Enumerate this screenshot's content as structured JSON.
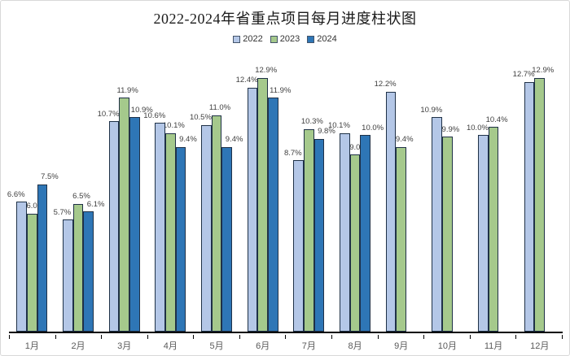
{
  "window": {
    "background": "#ffffff",
    "border_color": "#d8d8d8"
  },
  "chart_data": {
    "type": "bar",
    "title": "2022-2024年省重点项目每月进度柱状图",
    "categories": [
      "1月",
      "2月",
      "3月",
      "4月",
      "5月",
      "6月",
      "7月",
      "8月",
      "9月",
      "10月",
      "11月",
      "12月"
    ],
    "series": [
      {
        "name": "2022",
        "color": "#B4C7E7",
        "values": [
          6.6,
          5.7,
          10.7,
          10.6,
          10.5,
          12.4,
          8.7,
          10.1,
          12.2,
          10.9,
          10.0,
          12.7
        ]
      },
      {
        "name": "2023",
        "color": "#A5C98C",
        "values": [
          6.0,
          6.5,
          11.9,
          10.1,
          11.0,
          12.9,
          10.3,
          9.0,
          9.4,
          9.9,
          10.4,
          12.9
        ]
      },
      {
        "name": "2024",
        "color": "#2E76B6",
        "values": [
          7.5,
          6.1,
          10.9,
          9.4,
          9.4,
          11.9,
          9.8,
          10.0,
          null,
          null,
          null,
          null
        ]
      }
    ],
    "value_suffix": "%",
    "data_labels": true,
    "xlabel": "",
    "ylabel": "",
    "ylim": [
      0,
      13.5
    ],
    "grid": false,
    "y_axis_visible": false,
    "legend_position": "top",
    "bar_outline_color": "#1F3147",
    "label_color": "#404040",
    "axis_color": "#000000",
    "tick_label_color": "#595959",
    "title_color": "#1a1a1a"
  }
}
